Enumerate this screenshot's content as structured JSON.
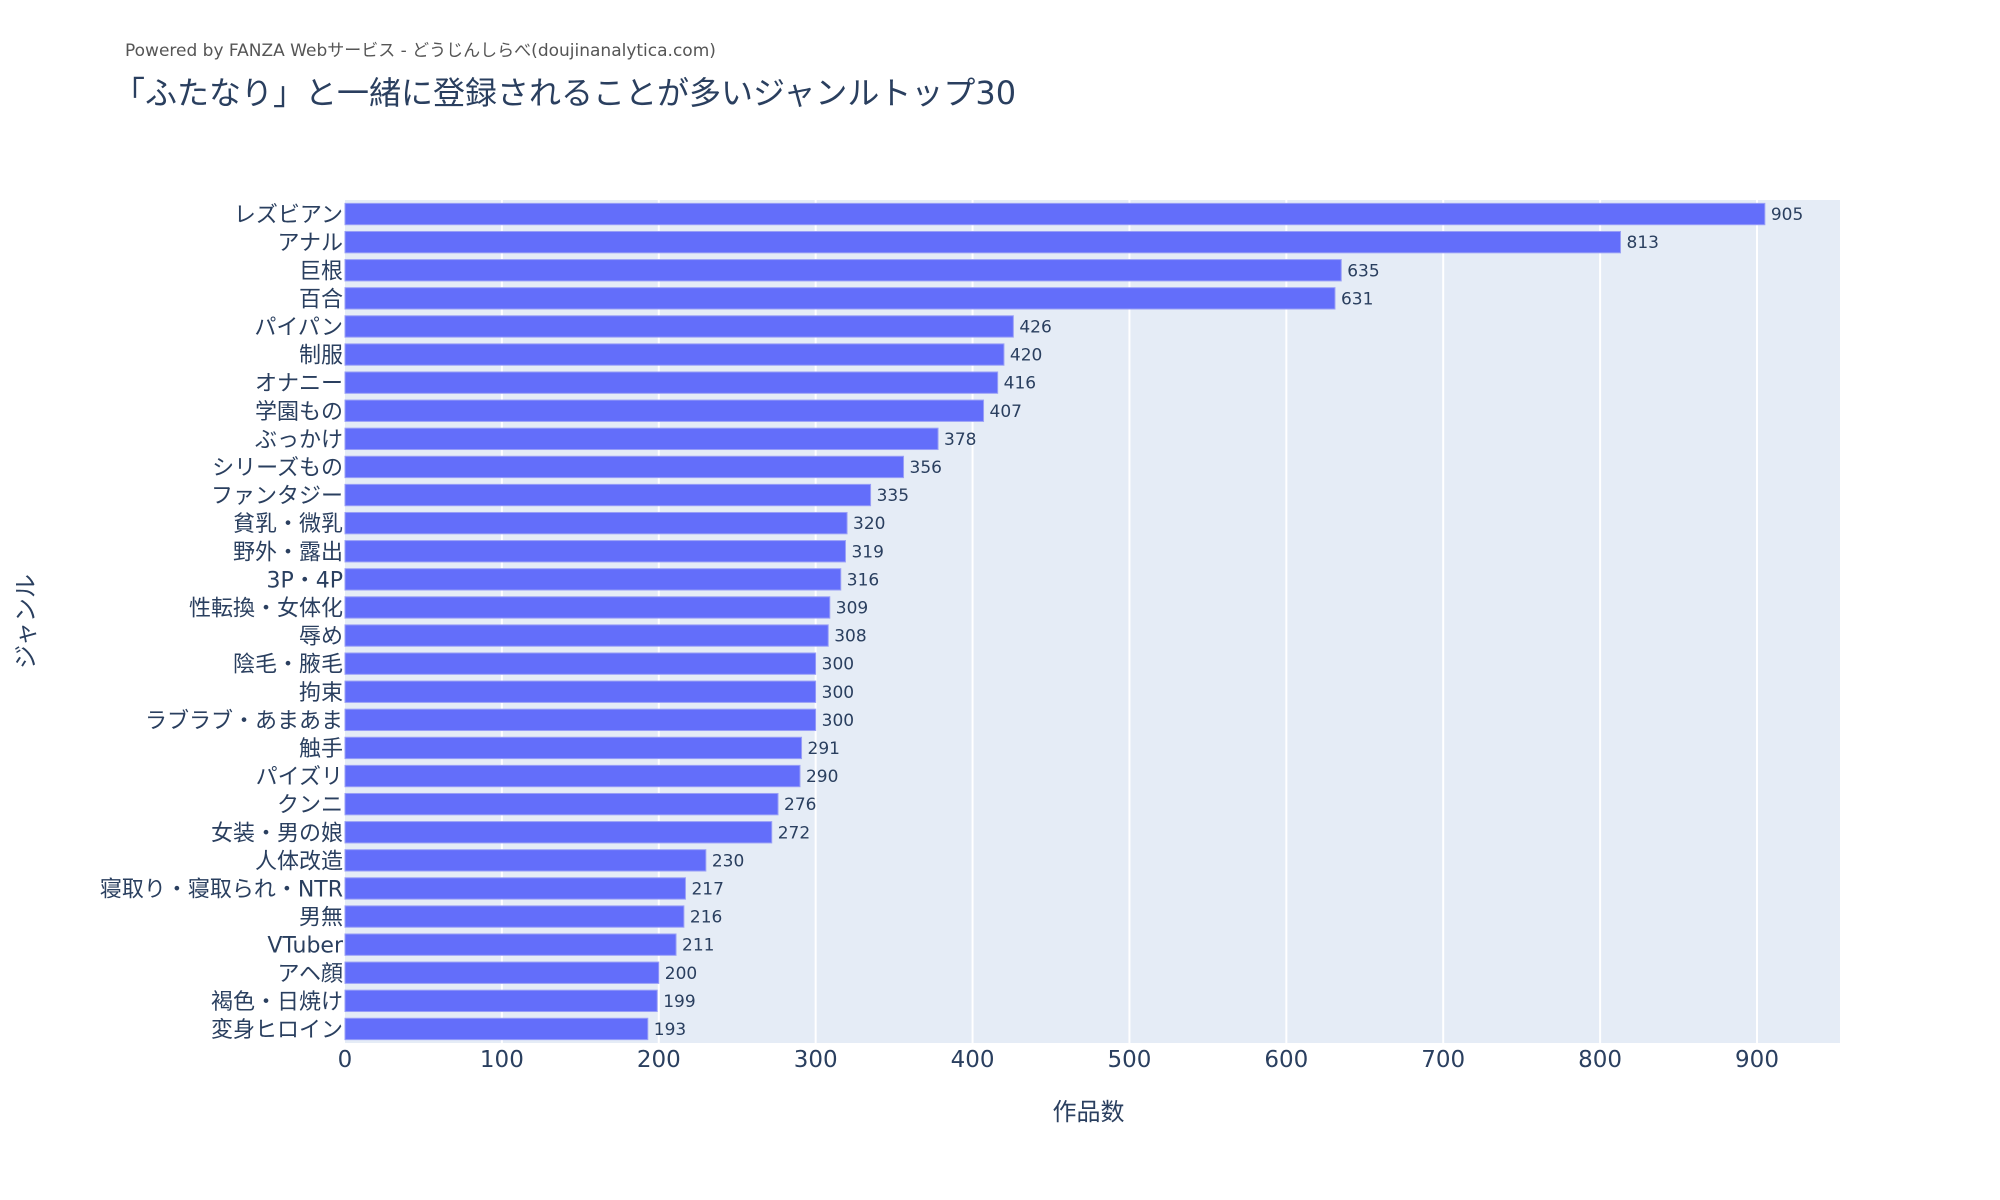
{
  "chart_data": {
    "type": "bar",
    "orientation": "horizontal",
    "subtitle": "Powered by FANZA Webサービス - どうじんしらべ(doujinanalytica.com)",
    "title": "「ふたなり」と一緒に登録されることが多いジャンルトップ30",
    "xlabel": "作品数",
    "ylabel": "ジャンル",
    "xlim": [
      0,
      952
    ],
    "xticks": [
      0,
      100,
      200,
      300,
      400,
      500,
      600,
      700,
      800,
      900
    ],
    "grid": true,
    "colors": {
      "bar": "#636efa",
      "plot_bg": "#e5ecf6",
      "grid": "#ffffff",
      "text": "#2a3f5f"
    },
    "categories": [
      "レズビアン",
      "アナル",
      "巨根",
      "百合",
      "パイパン",
      "制服",
      "オナニー",
      "学園もの",
      "ぶっかけ",
      "シリーズもの",
      "ファンタジー",
      "貧乳・微乳",
      "野外・露出",
      "3P・4P",
      "性転換・女体化",
      "辱め",
      "陰毛・腋毛",
      "拘束",
      "ラブラブ・あまあま",
      "触手",
      "パイズリ",
      "クンニ",
      "女装・男の娘",
      "人体改造",
      "寝取り・寝取られ・NTR",
      "男無",
      "VTuber",
      "アヘ顔",
      "褐色・日焼け",
      "変身ヒロイン"
    ],
    "values": [
      905,
      813,
      635,
      631,
      426,
      420,
      416,
      407,
      378,
      356,
      335,
      320,
      319,
      316,
      309,
      308,
      300,
      300,
      300,
      291,
      290,
      276,
      272,
      230,
      217,
      216,
      211,
      200,
      199,
      193
    ]
  }
}
